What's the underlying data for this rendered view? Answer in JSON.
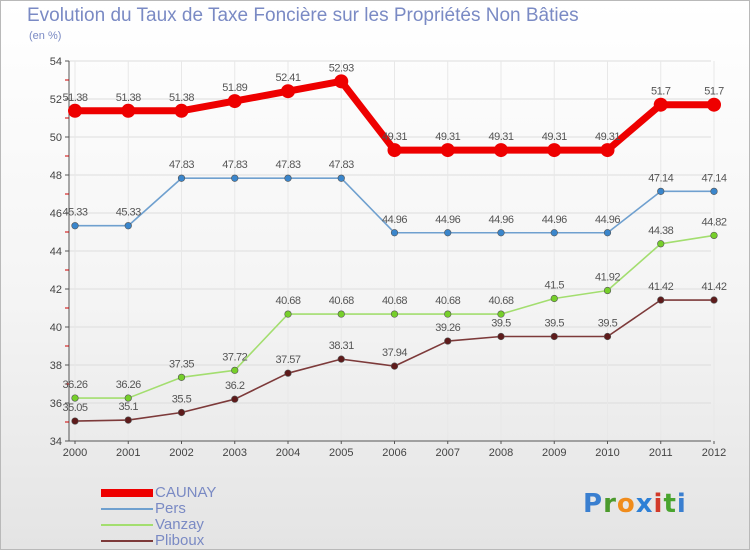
{
  "chart_data": {
    "type": "line",
    "title": "Evolution du Taux de Taxe Foncière sur les Propriétés Non Bâties",
    "subtitle": "(en %)",
    "xlabel": "",
    "ylabel": "(en %)",
    "x": [
      "2000",
      "2001",
      "2002",
      "2003",
      "2004",
      "2005",
      "2006",
      "2007",
      "2008",
      "2009",
      "2010",
      "2011",
      "2012"
    ],
    "ylim": [
      34,
      54
    ],
    "yticks": [
      34,
      36,
      38,
      40,
      42,
      44,
      46,
      48,
      50,
      52,
      54
    ],
    "grid": true,
    "legend_position": "bottom-left",
    "series": [
      {
        "name": "CAUNAY",
        "color": "#ee0000",
        "marker_color": "#ee0000",
        "width": "thick",
        "values": [
          51.38,
          51.38,
          51.38,
          51.89,
          52.41,
          52.93,
          49.31,
          49.31,
          49.31,
          49.31,
          49.31,
          51.7,
          51.7
        ],
        "labels": [
          "51.38",
          "51.38",
          "51.38",
          "51.89",
          "52.41",
          "52.93",
          "49.31",
          "49.31",
          "49.31",
          "49.31",
          "49.31",
          "51.7",
          "51.7"
        ]
      },
      {
        "name": "Pers",
        "color": "#6fa0cf",
        "marker_color": "#3a86cc",
        "width": "thin",
        "values": [
          45.33,
          45.33,
          47.83,
          47.83,
          47.83,
          47.83,
          44.96,
          44.96,
          44.96,
          44.96,
          44.96,
          47.14,
          47.14
        ],
        "labels": [
          "45.33",
          "45.33",
          "47.83",
          "47.83",
          "47.83",
          "47.83",
          "44.96",
          "44.96",
          "44.96",
          "44.96",
          "44.96",
          "47.14",
          "47.14"
        ]
      },
      {
        "name": "Vanzay",
        "color": "#a3de6f",
        "marker_color": "#76cf2a",
        "width": "thin",
        "values": [
          36.26,
          36.26,
          37.35,
          37.72,
          40.68,
          40.68,
          40.68,
          40.68,
          40.68,
          41.5,
          41.92,
          44.38,
          44.82
        ],
        "labels": [
          "36.26",
          "36.26",
          "37.35",
          "37.72",
          "40.68",
          "40.68",
          "40.68",
          "40.68",
          "40.68",
          "41.5",
          "41.92",
          "44.38",
          "44.82"
        ]
      },
      {
        "name": "Pliboux",
        "color": "#7d3a3a",
        "marker_color": "#5e1b1b",
        "width": "thin",
        "values": [
          35.05,
          35.1,
          35.5,
          36.2,
          37.57,
          38.31,
          37.94,
          39.26,
          39.5,
          39.5,
          39.5,
          41.42,
          41.42
        ],
        "labels": [
          "35.05",
          "35.1",
          "35.5",
          "36.2",
          "37.57",
          "38.31",
          "37.94",
          "39.26",
          "39.5",
          "39.5",
          "39.5",
          "41.42",
          "41.42"
        ]
      }
    ]
  },
  "logo": {
    "letters": [
      "P",
      "r",
      "o",
      "x",
      "i",
      "t",
      "i"
    ],
    "colors": [
      "#3a7fd0",
      "#4b9a2c",
      "#f08c1c",
      "#2e80d6",
      "#d23a2a",
      "#49a42e",
      "#3a7fd0"
    ]
  }
}
